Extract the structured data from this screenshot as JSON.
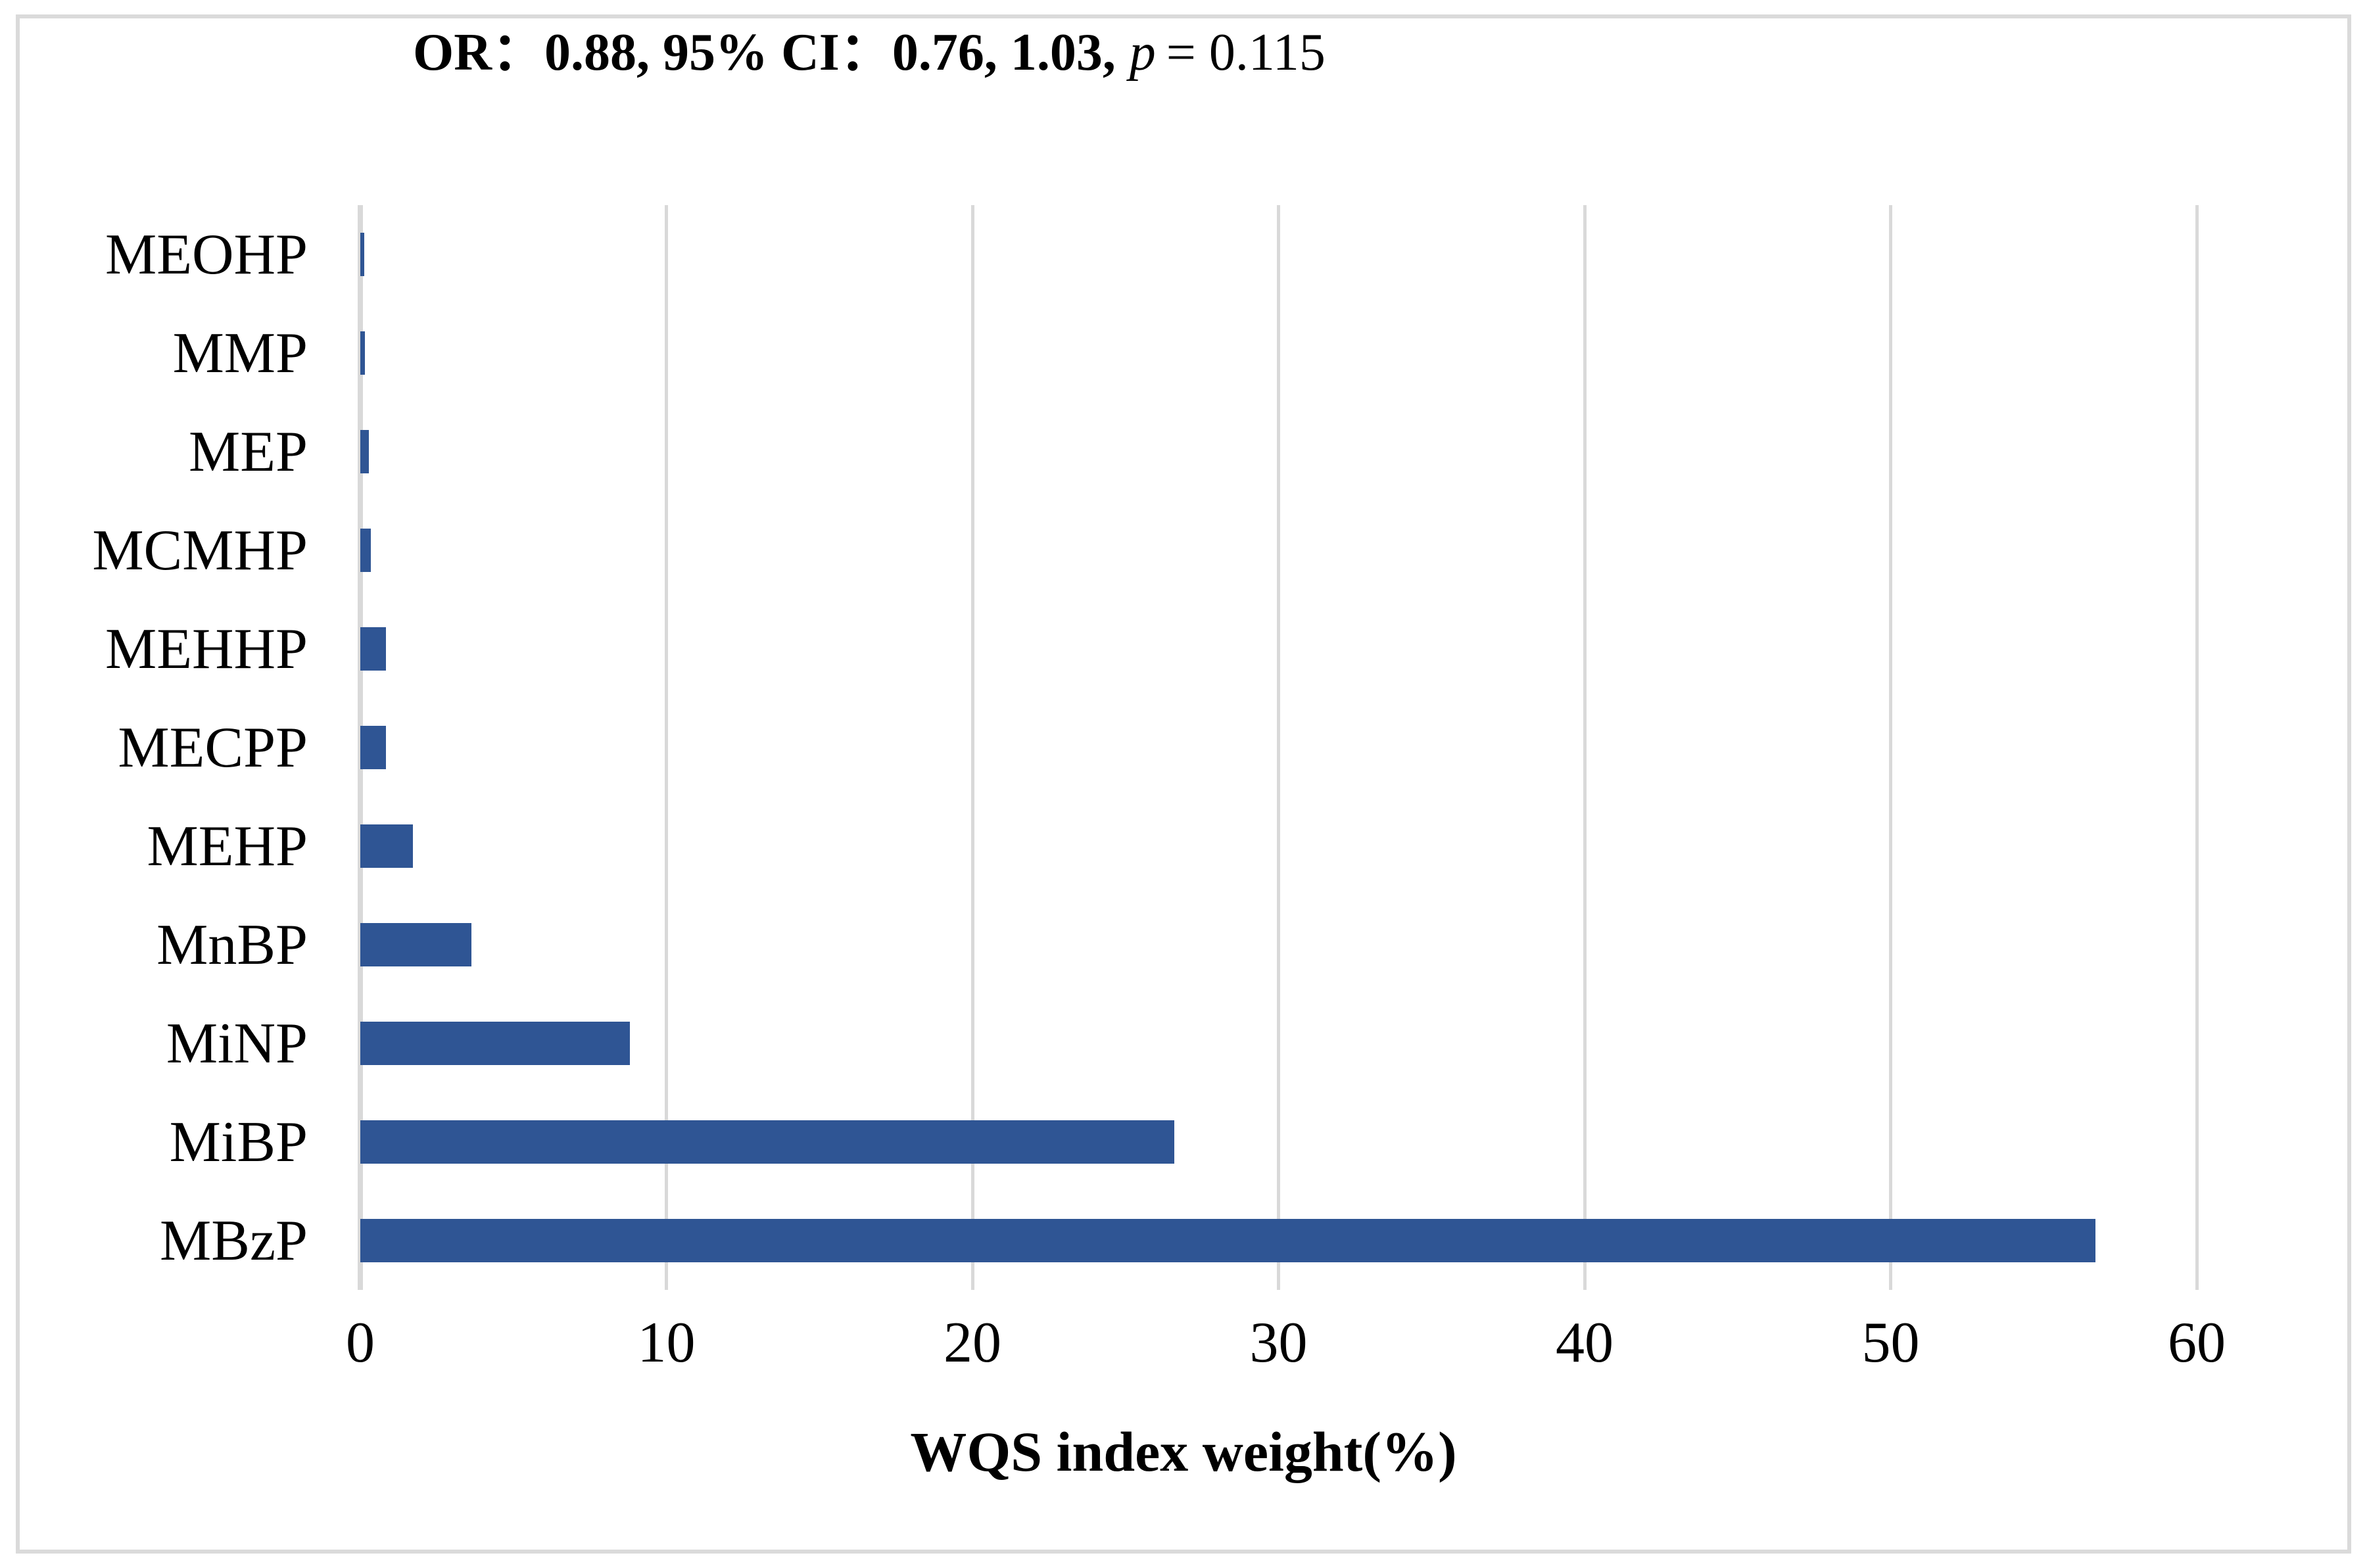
{
  "title": {
    "bold": "OR：0.88, 95% CI：0.76, 1.03,",
    "italic": "p",
    "rest": "= 0.115"
  },
  "chart_data": {
    "type": "bar",
    "orientation": "horizontal",
    "title": "OR：0.88, 95% CI：0.76, 1.03, p = 0.115",
    "xlabel": "WQS index weight(%)",
    "ylabel": "",
    "categories": [
      "MEOHP",
      "MMP",
      "MEP",
      "MCMHP",
      "MEHHP",
      "MECPP",
      "MEHP",
      "MnBP",
      "MiNP",
      "MiBP",
      "MBzP"
    ],
    "values": [
      0.13,
      0.16,
      0.28,
      0.35,
      0.84,
      0.83,
      1.72,
      3.62,
      8.8,
      26.6,
      56.7
    ],
    "xticks": [
      0,
      10,
      20,
      30,
      40,
      50,
      60
    ],
    "xlim": [
      0,
      60
    ],
    "grid": true,
    "legend_position": "none",
    "bar_color": "#2F5594",
    "gridline_color": "#D9D9D9",
    "frame_color": "#DADADA",
    "text_color": "#000000"
  }
}
